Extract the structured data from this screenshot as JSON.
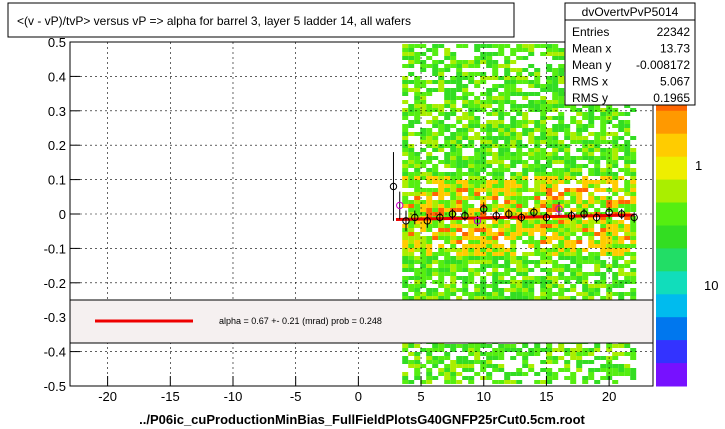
{
  "title": "<(v - vP)/tvP> versus   vP => alpha for barrel 3, layer 5 ladder 14, all wafers",
  "footer": "../P06ic_cuProductionMinBias_FullFieldPlotsG40GNFP25rCut0.5cm.root",
  "stats": {
    "name": "dvOvertvPvP5014",
    "rows": [
      {
        "label": "Entries",
        "value": "22342"
      },
      {
        "label": "Mean x",
        "value": "13.73"
      },
      {
        "label": "Mean y",
        "value": "-0.008172"
      },
      {
        "label": "RMS x",
        "value": "5.067"
      },
      {
        "label": "RMS y",
        "value": "0.1965"
      }
    ]
  },
  "fit_label": "alpha =    0.67 +-  0.21 (mrad) prob = 0.248",
  "colorbar": {
    "labels": [
      "1",
      "10"
    ]
  },
  "colors": {
    "fit_line": "#ee0000",
    "points": "#000000",
    "points_alt": "#cc00cc"
  },
  "chart_data": {
    "type": "scatter",
    "title": "<(v - vP)/tvP> versus   vP => alpha for barrel 3, layer 5 ladder 14, all wafers",
    "xlim": [
      -23,
      23.5
    ],
    "ylim": [
      -0.5,
      0.5
    ],
    "x_ticks": [
      -20,
      -15,
      -10,
      -5,
      0,
      5,
      10,
      15,
      20
    ],
    "y_ticks": [
      -0.5,
      -0.4,
      -0.3,
      -0.2,
      -0.1,
      0,
      0.1,
      0.2,
      0.3,
      0.4,
      0.5
    ],
    "grid": true,
    "heatmap_x_range": [
      3.5,
      22
    ],
    "profile_points": [
      {
        "x": 2.8,
        "y": 0.08,
        "err": 0.1
      },
      {
        "x": 3.3,
        "y": 0.025,
        "err": 0.04
      },
      {
        "x": 3.8,
        "y": -0.02,
        "err": 0.03
      },
      {
        "x": 4.5,
        "y": -0.01,
        "err": 0.02
      },
      {
        "x": 5.5,
        "y": -0.02,
        "err": 0.02
      },
      {
        "x": 6.5,
        "y": -0.01,
        "err": 0.015
      },
      {
        "x": 7.5,
        "y": 0.0,
        "err": 0.015
      },
      {
        "x": 8.5,
        "y": -0.005,
        "err": 0.015
      },
      {
        "x": 9.5,
        "y": -0.02,
        "err": 0.015
      },
      {
        "x": 10.0,
        "y": 0.015,
        "err": 0.015
      },
      {
        "x": 11.0,
        "y": -0.005,
        "err": 0.015
      },
      {
        "x": 12.0,
        "y": 0.0,
        "err": 0.015
      },
      {
        "x": 13.0,
        "y": -0.01,
        "err": 0.015
      },
      {
        "x": 14.0,
        "y": 0.005,
        "err": 0.015
      },
      {
        "x": 15.0,
        "y": -0.01,
        "err": 0.015
      },
      {
        "x": 16.0,
        "y": 0.015,
        "err": 0.02
      },
      {
        "x": 17.0,
        "y": -0.005,
        "err": 0.015
      },
      {
        "x": 18.0,
        "y": 0.0,
        "err": 0.015
      },
      {
        "x": 19.0,
        "y": -0.01,
        "err": 0.015
      },
      {
        "x": 20.0,
        "y": 0.005,
        "err": 0.015
      },
      {
        "x": 21.0,
        "y": 0.0,
        "err": 0.015
      },
      {
        "x": 22.0,
        "y": -0.01,
        "err": 0.015
      }
    ],
    "fit_line": {
      "x": [
        3,
        22
      ],
      "y": [
        -0.016,
        -0.003
      ]
    }
  }
}
